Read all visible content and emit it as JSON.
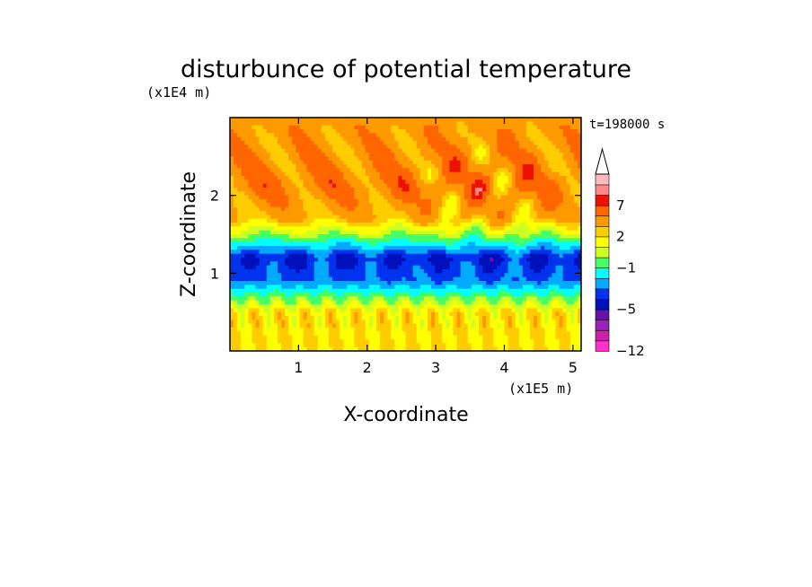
{
  "chart_data": {
    "type": "heatmap",
    "title": "disturbunce of potential temperature",
    "xlabel": "X-coordinate",
    "ylabel": "Z-coordinate",
    "x_unit": "(x1E5 m)",
    "y_unit": "(x1E4 m)",
    "time_label": "t=198000 s",
    "xlim": [
      0,
      5.12
    ],
    "ylim": [
      0,
      3.0
    ],
    "x_ticks": [
      1,
      2,
      3,
      4,
      5
    ],
    "y_ticks": [
      1,
      2
    ],
    "colorbar": {
      "levels": [
        -12,
        -10,
        -8,
        -6,
        -5,
        -4,
        -3,
        -2,
        -1,
        0,
        1,
        2,
        3,
        5,
        7,
        8,
        9,
        10
      ],
      "tick_labels": [
        "7",
        "2",
        "-1",
        "-5",
        "-12"
      ],
      "tick_values": [
        7,
        2,
        -1,
        -5,
        -12
      ],
      "colors": [
        "#ff33cc",
        "#cc22aa",
        "#9922bb",
        "#6611aa",
        "#0011bb",
        "#0033ee",
        "#00aaff",
        "#00ffff",
        "#44ff66",
        "#ccff22",
        "#ffff00",
        "#ffcc00",
        "#ff9900",
        "#ff6600",
        "#ee1100",
        "#ff8888",
        "#ffbbbb",
        "#ffffff"
      ],
      "extend": "max"
    },
    "approx_features": [
      {
        "z": 0.5,
        "value": 2
      },
      {
        "z": 0.9,
        "value": -3
      },
      {
        "z": 1.2,
        "value": -4
      },
      {
        "z": 1.7,
        "value": 3
      },
      {
        "z": 2.1,
        "value": 5
      },
      {
        "z": 2.7,
        "value": 4
      }
    ]
  }
}
